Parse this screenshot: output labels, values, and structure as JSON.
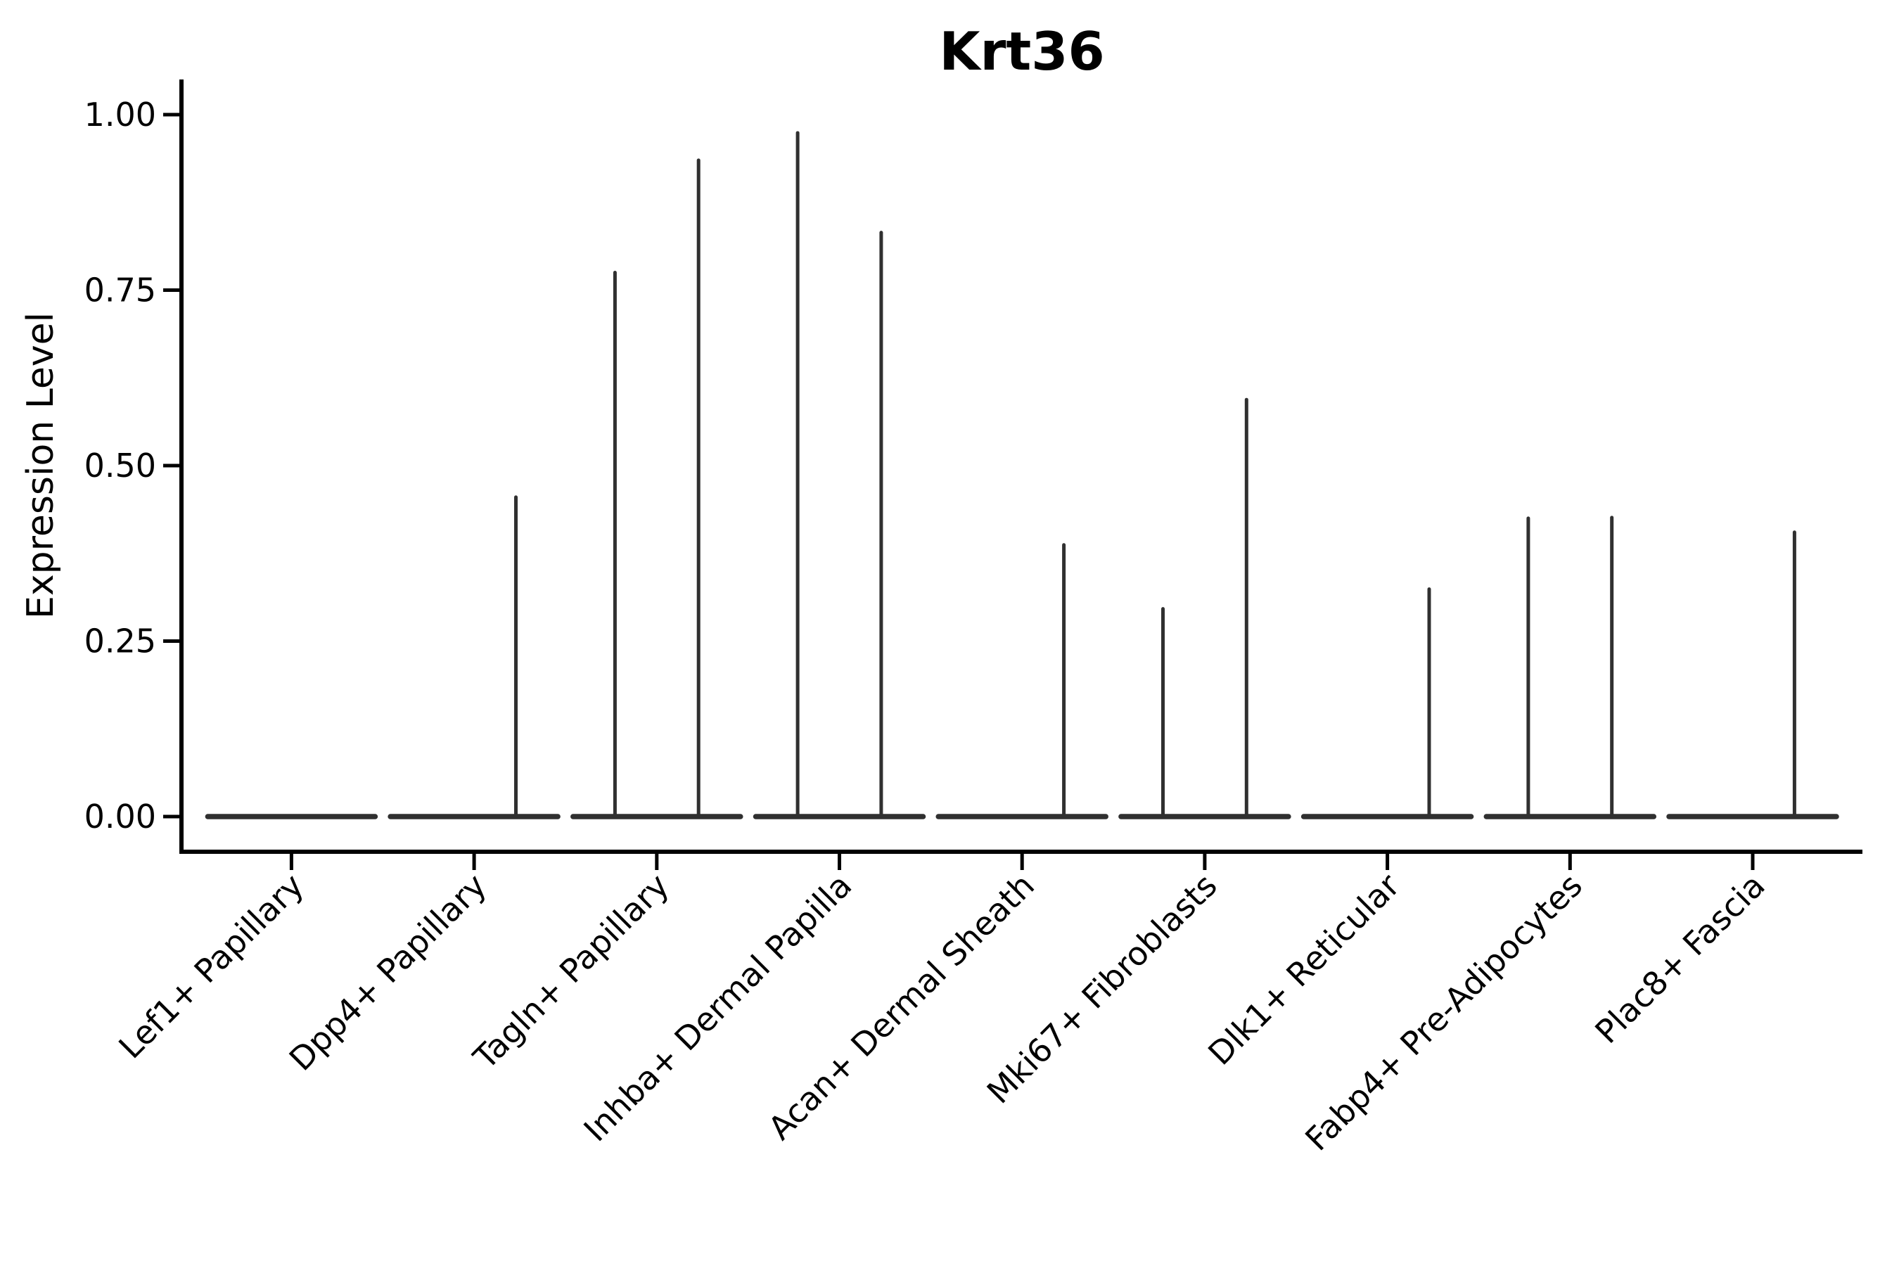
{
  "figure": {
    "background": "#ffffff"
  },
  "chart_data": {
    "type": "violin",
    "title": "Krt36",
    "xlabel": "",
    "ylabel": "Expression Level",
    "ylim": [
      -0.05,
      1.05
    ],
    "yticks": [
      0,
      0.25,
      0.5,
      0.75,
      1
    ],
    "ytick_labels": [
      "0.00",
      "0.25",
      "0.50",
      "0.75",
      "1.00"
    ],
    "categories": [
      "Lef1+ Papillary",
      "Dpp4+ Papillary",
      "Tagln+ Papillary",
      "Inhba+ Dermal Papilla",
      "Acan+ Dermal Sheath",
      "Mki67+ Fibroblasts",
      "Dlk1+ Reticular",
      "Fabp4+ Pre-Adipocytes",
      "Plac8+ Fascia"
    ],
    "series": [
      {
        "name": "left-violin",
        "max_expression": [
          0,
          0,
          0.775,
          0.974,
          0,
          0.296,
          0,
          0.425,
          0
        ]
      },
      {
        "name": "right-violin",
        "max_expression": [
          0,
          0.455,
          0.935,
          0.832,
          0.387,
          0.594,
          0.324,
          0.426,
          0.405
        ]
      }
    ],
    "violin_style": "flat baseline bar at 0 with thin vertical spike rising to max expression",
    "violin_color": "#303030",
    "axis_color": "#000000",
    "legend": "none",
    "grid": false
  }
}
